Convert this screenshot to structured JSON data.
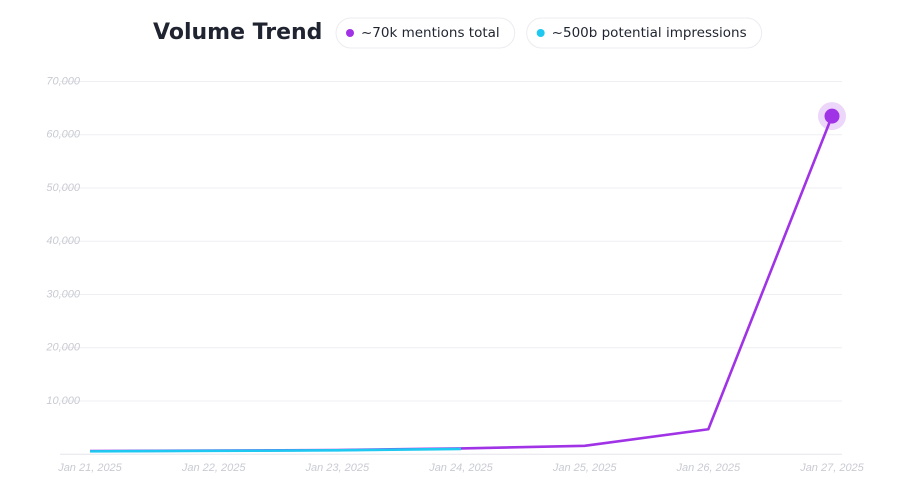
{
  "chart_data": {
    "type": "line",
    "title": "Volume Trend",
    "categories": [
      "Jan 21, 2025",
      "Jan 22, 2025",
      "Jan 23, 2025",
      "Jan 24, 2025",
      "Jan 25, 2025",
      "Jan 26, 2025",
      "Jan 27, 2025"
    ],
    "series": [
      {
        "name": "~70k mentions total",
        "color": "#a033e6",
        "values": [
          600,
          700,
          800,
          1100,
          1600,
          4700,
          63500
        ]
      },
      {
        "name": "~500b potential impressions",
        "color": "#1ec8f0",
        "values": [
          550,
          650,
          750,
          1000,
          null,
          null,
          null
        ]
      }
    ],
    "ylim": [
      0,
      70000
    ],
    "yticks": [
      {
        "value": 10000,
        "label": "10,000"
      },
      {
        "value": 20000,
        "label": "20,000"
      },
      {
        "value": 30000,
        "label": "30,000"
      },
      {
        "value": 40000,
        "label": "40,000"
      },
      {
        "value": 50000,
        "label": "50,000"
      },
      {
        "value": 60000,
        "label": "60,000"
      },
      {
        "value": 70000,
        "label": "70,000"
      }
    ],
    "grid": true
  }
}
